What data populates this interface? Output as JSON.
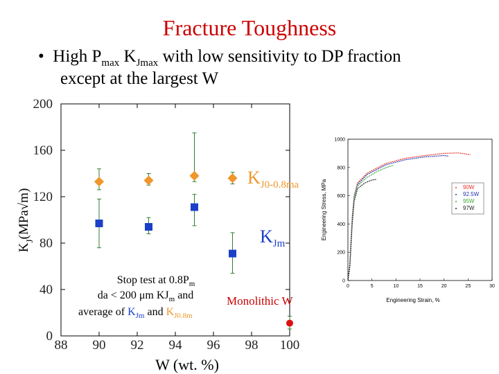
{
  "slide": {
    "title": "Fracture Toughness",
    "bullet_marker": "•",
    "bullet_line1_a": "High P",
    "bullet_line1_sub1": "max",
    "bullet_line1_b": " K",
    "bullet_line1_sub2": "Jmax",
    "bullet_line1_c": " with low sensitivity to DP fraction",
    "bullet_line2": "except at the largest W"
  },
  "annotations": {
    "kj08_main": "K",
    "kj08_sub": "J0-0.8ma",
    "kjm_main": "K",
    "kjm_sub": "Jm",
    "stop_line1_a": "Stop test at 0.8P",
    "stop_line1_sub": "m",
    "stop_line2_a": "da < 200 μm KJ",
    "stop_line2_sub": "m",
    "stop_line2_b": " and",
    "stop_line3_a": "average  of ",
    "stop_line3_k1": "K",
    "stop_line3_sub1": "Jm",
    "stop_line3_and": " and ",
    "stop_line3_k2": "K",
    "stop_line3_sub2": "J0.8m",
    "monolithic": "Monolithic W"
  },
  "colors": {
    "title": "#cc0000",
    "square": "#1a3fc8",
    "diamond": "#f0962a",
    "monolithic": "#dd1111",
    "errorbar": "#2e7d32"
  },
  "chart_data": [
    {
      "type": "scatter",
      "title": "",
      "xlabel": "W (wt. %)",
      "ylabel_main": "K",
      "ylabel_sub": "J",
      "ylabel_rest": "(MPa√m)",
      "xlim": [
        88,
        100
      ],
      "ylim": [
        0,
        200
      ],
      "xticks": [
        88,
        90,
        92,
        94,
        96,
        98,
        100
      ],
      "yticks": [
        0,
        40,
        80,
        120,
        160,
        200
      ],
      "series": [
        {
          "name": "KJ0-0.8ma",
          "marker": "diamond",
          "points": [
            {
              "x": 90.0,
              "y": 133,
              "err_low": 126,
              "err_high": 144
            },
            {
              "x": 92.6,
              "y": 134,
              "err_low": 130,
              "err_high": 140
            },
            {
              "x": 95.0,
              "y": 138,
              "err_low": 133,
              "err_high": 175
            },
            {
              "x": 97.0,
              "y": 136,
              "err_low": 131,
              "err_high": 141
            }
          ]
        },
        {
          "name": "KJm",
          "marker": "square",
          "points": [
            {
              "x": 90.0,
              "y": 97,
              "err_low": 76,
              "err_high": 118
            },
            {
              "x": 92.6,
              "y": 94,
              "err_low": 88,
              "err_high": 102
            },
            {
              "x": 95.0,
              "y": 111,
              "err_low": 95,
              "err_high": 122
            },
            {
              "x": 97.0,
              "y": 71,
              "err_low": 54,
              "err_high": 89
            }
          ]
        },
        {
          "name": "Monolithic W",
          "marker": "circle",
          "points": [
            {
              "x": 100.0,
              "y": 11,
              "err_low": 6,
              "err_high": 17
            }
          ]
        }
      ]
    },
    {
      "type": "line",
      "title": "",
      "xlabel": "Engineering Strain, %",
      "ylabel": "Engineering Stress, MPa",
      "xlim": [
        0,
        30
      ],
      "ylim": [
        0,
        1000
      ],
      "xticks": [
        0,
        5,
        10,
        15,
        20,
        25,
        30
      ],
      "yticks": [
        0,
        200,
        400,
        600,
        800,
        1000
      ],
      "legend_position": "right",
      "series": [
        {
          "name": "90W",
          "color": "#e8332a",
          "x": [
            0,
            0.4,
            0.9,
            1.3,
            2,
            4,
            8,
            12,
            16,
            20,
            23,
            25.5
          ],
          "y": [
            0,
            120,
            450,
            600,
            690,
            760,
            830,
            865,
            885,
            900,
            903,
            890
          ]
        },
        {
          "name": "92.5W",
          "color": "#2233aa",
          "x": [
            0,
            0.4,
            0.9,
            1.3,
            2,
            4,
            8,
            12,
            16,
            20,
            21
          ],
          "y": [
            0,
            110,
            430,
            590,
            680,
            750,
            820,
            855,
            875,
            885,
            880
          ]
        },
        {
          "name": "95W",
          "color": "#38a838",
          "x": [
            0,
            0.4,
            0.9,
            1.3,
            2,
            4,
            6,
            8,
            9.5
          ],
          "y": [
            0,
            105,
            420,
            580,
            670,
            730,
            770,
            800,
            815
          ]
        },
        {
          "name": "97W",
          "color": "#222222",
          "x": [
            0,
            0.4,
            0.9,
            1.3,
            2,
            3.5,
            5,
            6
          ],
          "y": [
            0,
            100,
            400,
            560,
            650,
            690,
            712,
            715
          ]
        }
      ]
    }
  ]
}
